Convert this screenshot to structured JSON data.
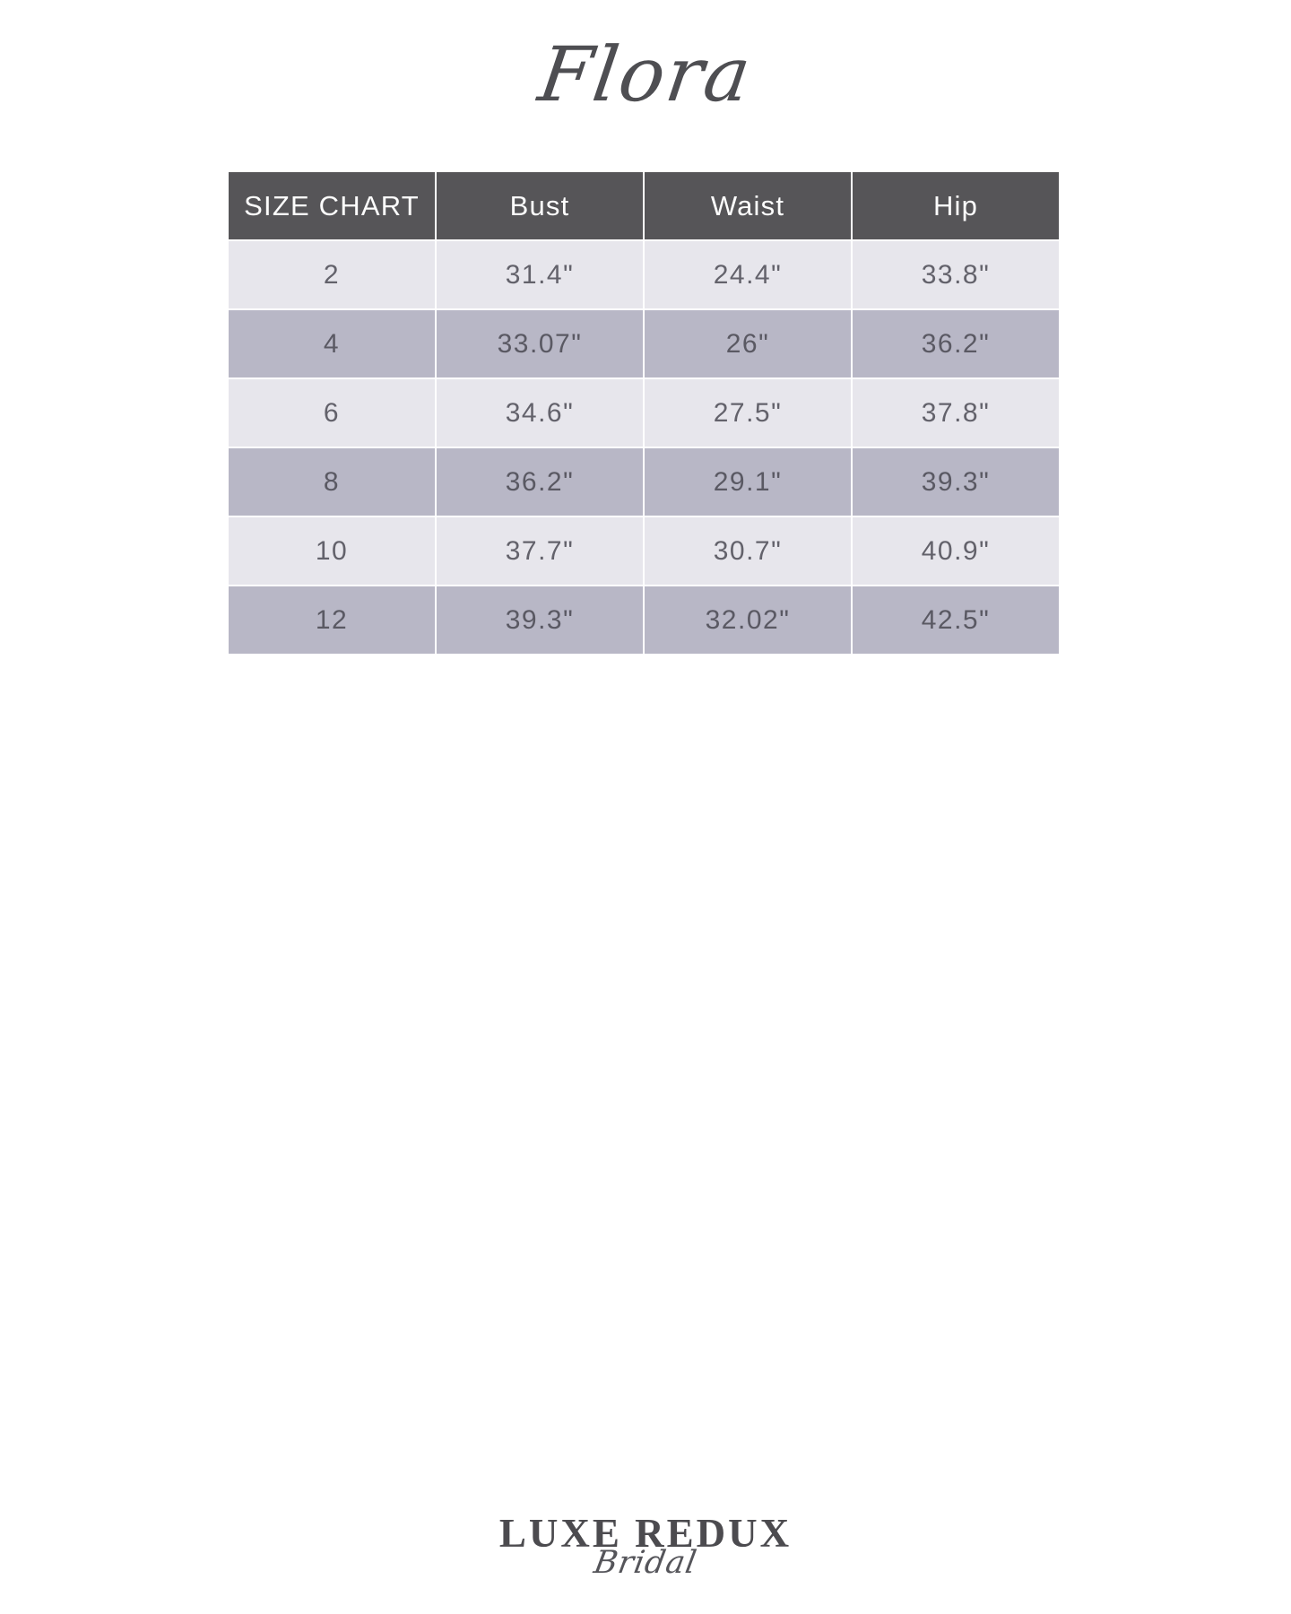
{
  "header": {
    "product_name": "Flora"
  },
  "size_chart": {
    "columns": [
      "SIZE CHART",
      "Bust",
      "Waist",
      "Hip"
    ],
    "rows": [
      {
        "size": "2",
        "bust": "31.4\"",
        "waist": "24.4\"",
        "hip": "33.8\""
      },
      {
        "size": "4",
        "bust": "33.07\"",
        "waist": "26\"",
        "hip": "36.2\""
      },
      {
        "size": "6",
        "bust": "34.6\"",
        "waist": "27.5\"",
        "hip": "37.8\""
      },
      {
        "size": "8",
        "bust": "36.2\"",
        "waist": "29.1\"",
        "hip": "39.3\""
      },
      {
        "size": "10",
        "bust": "37.7\"",
        "waist": "30.7\"",
        "hip": "40.9\""
      },
      {
        "size": "12",
        "bust": "39.3\"",
        "waist": "32.02\"",
        "hip": "42.5\""
      }
    ]
  },
  "footer_logo": {
    "name": "LUXE REDUX",
    "tagline": "Bridal"
  },
  "colors": {
    "header_background": "#565558",
    "header_text": "#fdfdfd",
    "row_light": "#e7e6ec",
    "row_dark": "#b8b7c6",
    "body_text": "#63626b",
    "title_text": "#4e4e52",
    "logo_text": "#4c4b4f",
    "page_background": "#ffffff"
  }
}
